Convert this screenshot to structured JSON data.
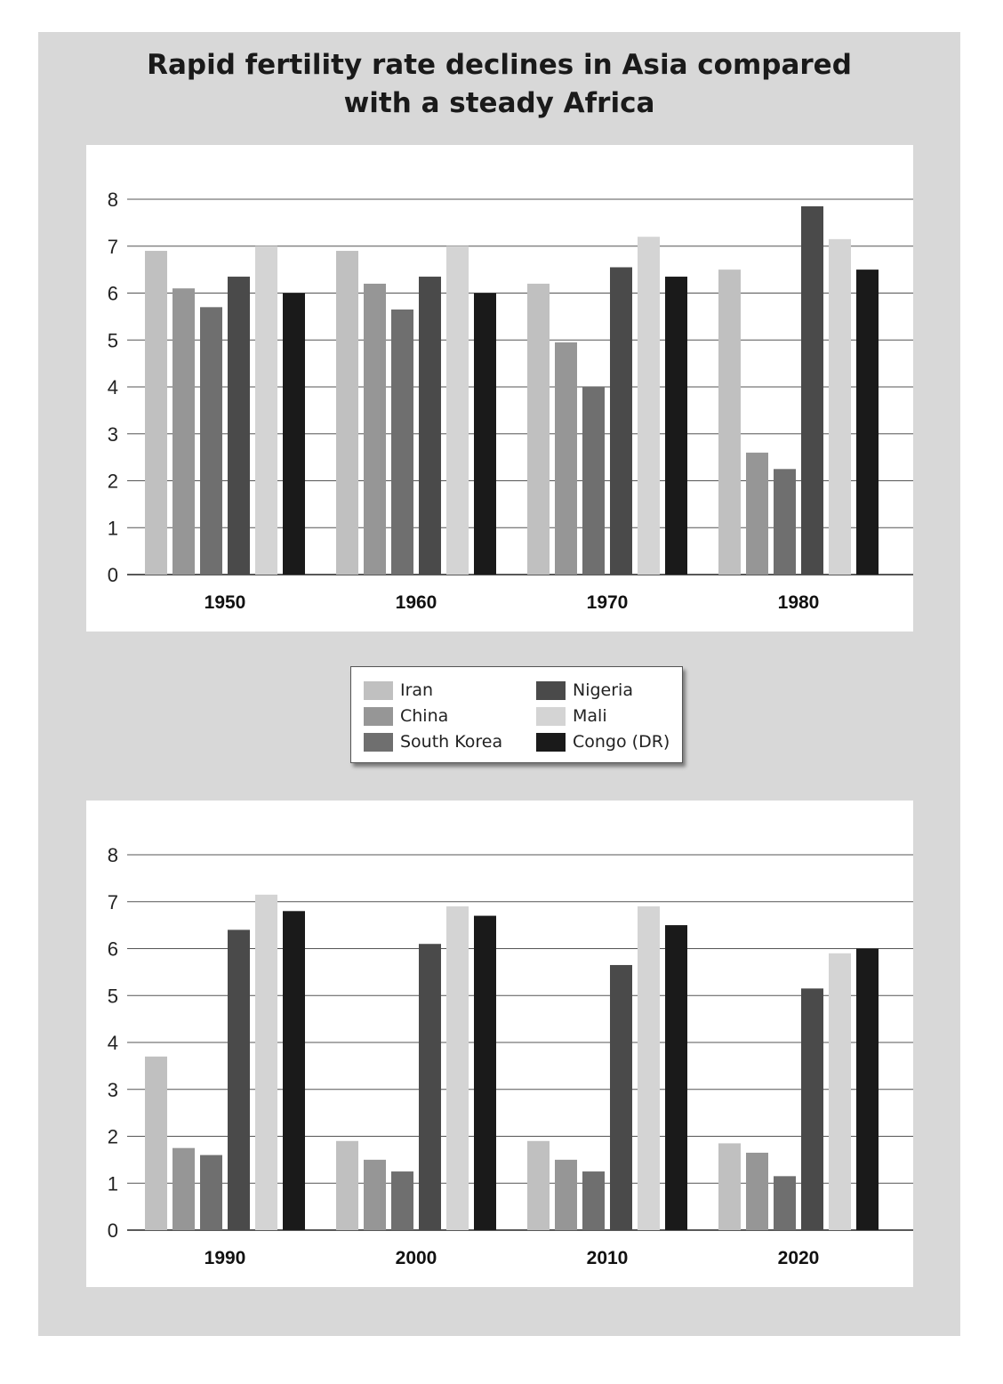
{
  "title": "Rapid fertility rate declines in Asia compared\nwith a steady Africa",
  "legend": [
    {
      "name": "Iran",
      "color": "#c0c0c0"
    },
    {
      "name": "China",
      "color": "#969696"
    },
    {
      "name": "South Korea",
      "color": "#6f6f6f"
    },
    {
      "name": "Nigeria",
      "color": "#4a4a4a"
    },
    {
      "name": "Mali",
      "color": "#d4d4d4"
    },
    {
      "name": "Congo (DR)",
      "color": "#1a1a1a"
    }
  ],
  "chart_data": [
    {
      "type": "bar",
      "categories": [
        "1950",
        "1960",
        "1970",
        "1980"
      ],
      "ylim": [
        0,
        8
      ],
      "yticks": [
        "0",
        "1",
        "2",
        "3",
        "4",
        "5",
        "6",
        "7",
        "8"
      ],
      "grid": true,
      "series": [
        {
          "name": "Iran",
          "values": [
            6.9,
            6.9,
            6.2,
            6.5
          ]
        },
        {
          "name": "China",
          "values": [
            6.1,
            6.2,
            4.95,
            2.6
          ]
        },
        {
          "name": "South Korea",
          "values": [
            5.7,
            5.65,
            4.0,
            2.25
          ]
        },
        {
          "name": "Nigeria",
          "values": [
            6.35,
            6.35,
            6.55,
            7.85
          ]
        },
        {
          "name": "Mali",
          "values": [
            7.0,
            7.0,
            7.2,
            7.15
          ]
        },
        {
          "name": "Congo (DR)",
          "values": [
            6.0,
            6.0,
            6.35,
            6.5
          ]
        }
      ]
    },
    {
      "type": "bar",
      "categories": [
        "1990",
        "2000",
        "2010",
        "2020"
      ],
      "ylim": [
        0,
        8
      ],
      "yticks": [
        "0",
        "1",
        "2",
        "3",
        "4",
        "5",
        "6",
        "7",
        "8"
      ],
      "grid": true,
      "series": [
        {
          "name": "Iran",
          "values": [
            3.7,
            1.9,
            1.9,
            1.85
          ]
        },
        {
          "name": "China",
          "values": [
            1.75,
            1.5,
            1.5,
            1.65
          ]
        },
        {
          "name": "South Korea",
          "values": [
            1.6,
            1.25,
            1.25,
            1.15
          ]
        },
        {
          "name": "Nigeria",
          "values": [
            6.4,
            6.1,
            5.65,
            5.15
          ]
        },
        {
          "name": "Mali",
          "values": [
            7.15,
            6.9,
            6.9,
            5.9
          ]
        },
        {
          "name": "Congo (DR)",
          "values": [
            6.8,
            6.7,
            6.5,
            6.0
          ]
        }
      ]
    }
  ]
}
